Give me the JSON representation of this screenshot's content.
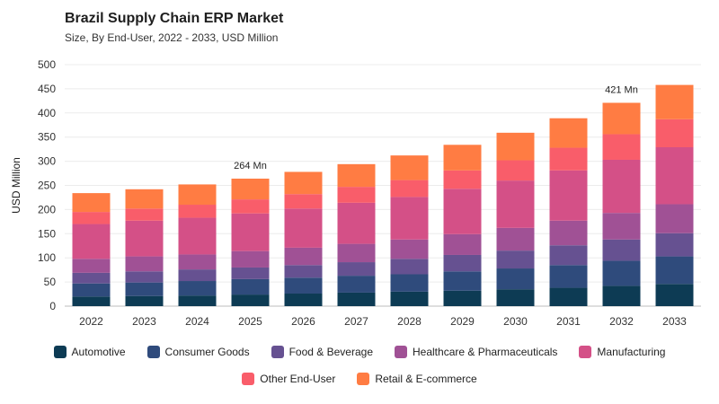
{
  "header": {
    "title": "Brazil Supply Chain ERP Market",
    "subtitle": "Size, By End-User, 2022 - 2033, USD Million"
  },
  "chart_data": {
    "type": "bar",
    "stacked": true,
    "title": "Brazil Supply Chain ERP Market",
    "subtitle": "Size, By End-User, 2022 - 2033, USD Million",
    "xlabel": "",
    "ylabel": "USD Million",
    "ylim": [
      0,
      500
    ],
    "yticks": [
      0,
      50,
      100,
      150,
      200,
      250,
      300,
      350,
      400,
      450,
      500
    ],
    "grid": true,
    "legend_position": "bottom",
    "categories": [
      "2022",
      "2023",
      "2024",
      "2025",
      "2026",
      "2027",
      "2028",
      "2029",
      "2030",
      "2031",
      "2032",
      "2033"
    ],
    "series": [
      {
        "name": "Automotive",
        "color": "#0d3b54",
        "values": [
          20,
          21,
          22,
          24,
          26,
          28,
          30,
          32,
          35,
          38,
          42,
          46
        ]
      },
      {
        "name": "Consumer Goods",
        "color": "#2f4b7c",
        "values": [
          27,
          28,
          30,
          32,
          33,
          35,
          36,
          40,
          43,
          47,
          52,
          57
        ]
      },
      {
        "name": "Food & Beverage",
        "color": "#665191",
        "values": [
          22,
          23,
          24,
          24,
          26,
          28,
          32,
          34,
          37,
          41,
          44,
          48
        ]
      },
      {
        "name": "Healthcare & Pharmaceuticals",
        "color": "#a05195",
        "values": [
          29,
          31,
          31,
          34,
          36,
          38,
          40,
          43,
          47,
          51,
          55,
          60
        ]
      },
      {
        "name": "Manufacturing",
        "color": "#d45087",
        "values": [
          72,
          74,
          76,
          78,
          81,
          85,
          88,
          94,
          98,
          104,
          110,
          118
        ]
      },
      {
        "name": "Other End-User",
        "color": "#f95d6a",
        "values": [
          25,
          25,
          27,
          29,
          30,
          33,
          35,
          38,
          42,
          47,
          53,
          58
        ]
      },
      {
        "name": "Retail & E-commerce",
        "color": "#ff7c43",
        "values": [
          39,
          40,
          42,
          43,
          46,
          47,
          51,
          53,
          57,
          61,
          65,
          71
        ]
      }
    ],
    "annotations": [
      {
        "category": "2025",
        "text": "264 Mn"
      },
      {
        "category": "2032",
        "text": "421 Mn"
      }
    ]
  }
}
